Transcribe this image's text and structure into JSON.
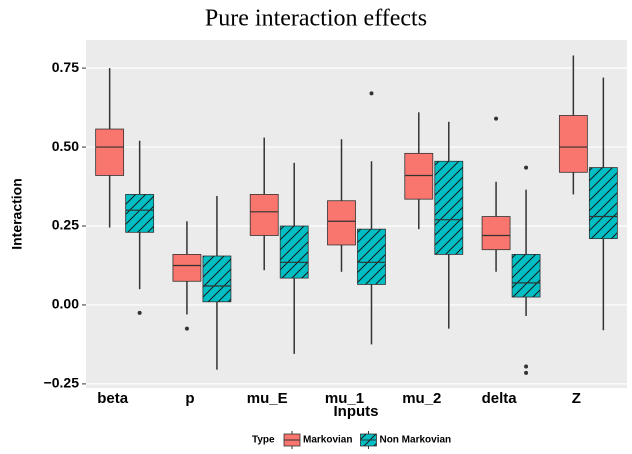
{
  "chart_data": {
    "type": "box",
    "title": "Pure interaction effects",
    "x_label": "Inputs",
    "y_label": "Interaction",
    "categories": [
      "beta",
      "p",
      "mu_E",
      "mu_1",
      "mu_2",
      "delta",
      "Z"
    ],
    "legend_title": "Type",
    "series": [
      {
        "name": "Markovian",
        "color": "#F8766D",
        "hatch": false,
        "values": [
          {
            "min": 0.245,
            "q1": 0.41,
            "median": 0.5,
            "q3": 0.557,
            "max": 0.75,
            "outliers": []
          },
          {
            "min": -0.03,
            "q1": 0.075,
            "median": 0.125,
            "q3": 0.16,
            "max": 0.265,
            "outliers": [
              -0.075
            ]
          },
          {
            "min": 0.11,
            "q1": 0.22,
            "median": 0.295,
            "q3": 0.35,
            "max": 0.53,
            "outliers": []
          },
          {
            "min": 0.105,
            "q1": 0.19,
            "median": 0.265,
            "q3": 0.33,
            "max": 0.525,
            "outliers": []
          },
          {
            "min": 0.24,
            "q1": 0.335,
            "median": 0.41,
            "q3": 0.48,
            "max": 0.61,
            "outliers": []
          },
          {
            "min": 0.105,
            "q1": 0.175,
            "median": 0.22,
            "q3": 0.28,
            "max": 0.39,
            "outliers": [
              0.59
            ]
          },
          {
            "min": 0.35,
            "q1": 0.42,
            "median": 0.5,
            "q3": 0.6,
            "max": 0.79,
            "outliers": []
          }
        ]
      },
      {
        "name": "Non Markovian",
        "color": "#00BFC4",
        "hatch": true,
        "values": [
          {
            "min": 0.05,
            "q1": 0.23,
            "median": 0.3,
            "q3": 0.35,
            "max": 0.52,
            "outliers": [
              -0.025
            ]
          },
          {
            "min": -0.205,
            "q1": 0.01,
            "median": 0.06,
            "q3": 0.155,
            "max": 0.345,
            "outliers": []
          },
          {
            "min": -0.155,
            "q1": 0.085,
            "median": 0.135,
            "q3": 0.25,
            "max": 0.45,
            "outliers": []
          },
          {
            "min": -0.125,
            "q1": 0.065,
            "median": 0.135,
            "q3": 0.24,
            "max": 0.455,
            "outliers": [
              0.67
            ]
          },
          {
            "min": -0.075,
            "q1": 0.16,
            "median": 0.27,
            "q3": 0.455,
            "max": 0.58,
            "outliers": []
          },
          {
            "min": -0.035,
            "q1": 0.025,
            "median": 0.07,
            "q3": 0.16,
            "max": 0.365,
            "outliers": [
              0.435,
              -0.195,
              -0.215
            ]
          },
          {
            "min": -0.08,
            "q1": 0.21,
            "median": 0.28,
            "q3": 0.435,
            "max": 0.72,
            "outliers": []
          }
        ]
      }
    ],
    "ylim": [
      -0.263,
      0.839
    ],
    "yticks": [
      {
        "value": -0.25,
        "label": "−0.25"
      },
      {
        "value": 0,
        "label": "0.00"
      },
      {
        "value": 0.25,
        "label": "0.25"
      },
      {
        "value": 0.5,
        "label": "0.50"
      },
      {
        "value": 0.75,
        "label": "0.75"
      }
    ],
    "grid": true
  }
}
